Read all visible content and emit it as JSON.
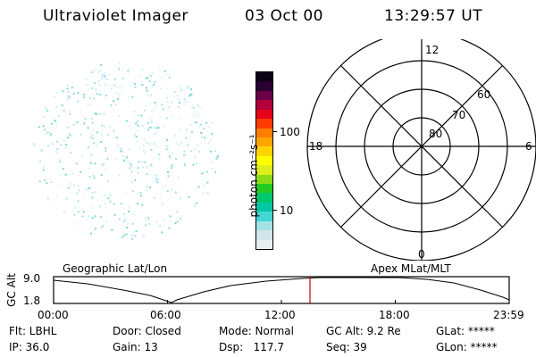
{
  "header": {
    "title": "Ultraviolet Imager",
    "date": "03 Oct 00",
    "time": "13:29:57 UT"
  },
  "colorbar": {
    "unit_label": "photon cm⁻²s⁻¹",
    "tick_100": "100",
    "tick_10": "10",
    "colors": [
      "#e9eef0",
      "#d3e6ea",
      "#a4e2e6",
      "#43d7d4",
      "#00c8a6",
      "#00c86b",
      "#22cc22",
      "#8bdb16",
      "#dcef1a",
      "#ffff00",
      "#ffd400",
      "#ffa600",
      "#ff7e00",
      "#ff3b00",
      "#e6001a",
      "#b3003a",
      "#6b0048",
      "#2a0033",
      "#0c0018"
    ]
  },
  "polar": {
    "label_12": "12",
    "label_0": "0",
    "label_18": "18",
    "label_6": "6",
    "lat_60": "60",
    "lat_70": "70",
    "lat_80": "80"
  },
  "timeline": {
    "left_label": "Geographic Lat/Lon",
    "right_label": "Apex MLat/MLT",
    "axis_label": "GC Alt",
    "y_top": "9.0",
    "y_bottom": "1.8",
    "ticks": [
      "00:00",
      "06:00",
      "12:00",
      "18:00",
      "23:59"
    ],
    "marker_time": "13:30"
  },
  "footer": {
    "row1": [
      "Flt: LBHL",
      "Door: Closed",
      "Mode: Normal",
      "GC Alt: 9.2 Re",
      "GLat: *****"
    ],
    "row2": [
      "IP: 36.0",
      "Gain: 13",
      "Dsp:   117.7",
      "Seq: 39",
      "GLon: *****"
    ]
  }
}
